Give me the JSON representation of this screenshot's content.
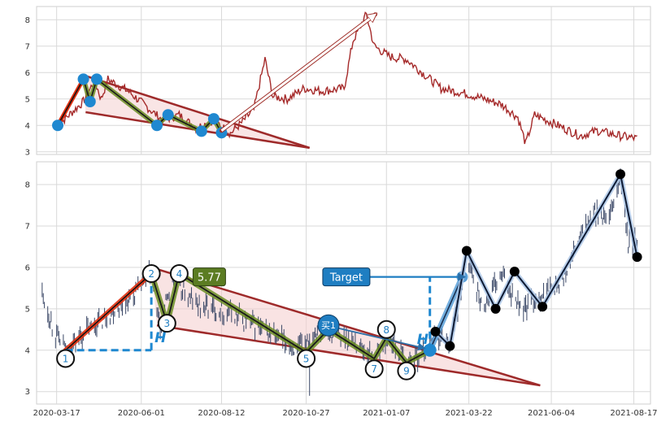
{
  "chart_data": [
    {
      "type": "line",
      "name": "overview-panel",
      "y_ticks": [
        3,
        4,
        5,
        6,
        7,
        8
      ],
      "ylim": [
        2.9,
        8.5
      ],
      "x_range": [
        "2020-02-28",
        "2021-09-01"
      ],
      "grid": true,
      "price_color": "#a52a2a",
      "price_anchors": [
        [
          "2020-03-18",
          4.0
        ],
        [
          "2020-04-10",
          4.9
        ],
        [
          "2020-04-20",
          5.7
        ],
        [
          "2020-04-26",
          5.0
        ],
        [
          "2020-05-02",
          5.75
        ],
        [
          "2020-05-20",
          5.3
        ],
        [
          "2020-06-20",
          4.2
        ],
        [
          "2020-07-05",
          4.4
        ],
        [
          "2020-07-20",
          3.9
        ],
        [
          "2020-08-05",
          4.2
        ],
        [
          "2020-08-20",
          3.7
        ],
        [
          "2020-08-30",
          4.1
        ],
        [
          "2020-09-10",
          4.6
        ],
        [
          "2020-09-20",
          6.5
        ],
        [
          "2020-09-27",
          5.1
        ],
        [
          "2020-10-10",
          5.0
        ],
        [
          "2020-10-25",
          5.4
        ],
        [
          "2020-11-10",
          5.3
        ],
        [
          "2020-11-30",
          5.4
        ],
        [
          "2020-12-08",
          7.2
        ],
        [
          "2020-12-20",
          8.2
        ],
        [
          "2020-12-27",
          7.0
        ],
        [
          "2021-01-10",
          6.6
        ],
        [
          "2021-01-25",
          6.5
        ],
        [
          "2021-02-08",
          6.0
        ],
        [
          "2021-02-25",
          5.4
        ],
        [
          "2021-03-20",
          5.2
        ],
        [
          "2021-04-05",
          5.0
        ],
        [
          "2021-04-20",
          4.8
        ],
        [
          "2021-05-05",
          4.3
        ],
        [
          "2021-05-12",
          3.3
        ],
        [
          "2021-05-20",
          4.4
        ],
        [
          "2021-06-10",
          4.0
        ],
        [
          "2021-06-30",
          3.6
        ],
        [
          "2021-07-15",
          3.8
        ],
        [
          "2021-08-05",
          3.6
        ],
        [
          "2021-08-20",
          3.5
        ]
      ],
      "pivots": [
        [
          "2020-03-18",
          4.0
        ],
        [
          "2020-04-10",
          5.75
        ],
        [
          "2020-04-16",
          4.9
        ],
        [
          "2020-04-22",
          5.75
        ],
        [
          "2020-06-15",
          4.0
        ],
        [
          "2020-06-25",
          4.4
        ],
        [
          "2020-07-25",
          3.78
        ],
        [
          "2020-08-05",
          4.25
        ],
        [
          "2020-08-12",
          3.72
        ]
      ],
      "wedge_upper": [
        [
          "2020-04-10",
          5.9
        ],
        [
          "2020-09-12",
          4.1
        ]
      ],
      "wedge_lower": [
        [
          "2020-04-12",
          4.5
        ],
        [
          "2020-10-30",
          3.15
        ]
      ],
      "arrow_from": [
        "2020-08-12",
        3.8
      ],
      "arrow_to": [
        "2020-12-28",
        8.2
      ]
    },
    {
      "type": "scatter",
      "name": "pattern-panel",
      "y_ticks": [
        3,
        4,
        5,
        6,
        7,
        8
      ],
      "ylim": [
        2.7,
        8.55
      ],
      "x_ticks": [
        "2020-03-17",
        "2020-06-01",
        "2020-08-12",
        "2020-10-27",
        "2021-01-07",
        "2021-03-22",
        "2021-06-04",
        "2021-08-17"
      ],
      "x_range": [
        "2020-02-28",
        "2021-09-01"
      ],
      "grid": true,
      "ohlc_color": "#3a4766",
      "ohlc_anchors": [
        [
          "2020-03-04",
          5.4
        ],
        [
          "2020-03-14",
          4.5
        ],
        [
          "2020-03-25",
          4.0
        ],
        [
          "2020-04-10",
          4.4
        ],
        [
          "2020-05-05",
          4.9
        ],
        [
          "2020-05-25",
          5.3
        ],
        [
          "2020-06-10",
          5.85
        ],
        [
          "2020-06-18",
          4.5
        ],
        [
          "2020-06-28",
          5.7
        ],
        [
          "2020-07-20",
          5.1
        ],
        [
          "2020-08-20",
          4.9
        ],
        [
          "2020-09-10",
          4.6
        ],
        [
          "2020-10-01",
          4.3
        ],
        [
          "2020-10-20",
          4.0
        ],
        [
          "2020-11-05",
          4.5
        ],
        [
          "2020-11-20",
          4.4
        ],
        [
          "2020-12-10",
          4.2
        ],
        [
          "2020-12-27",
          3.8
        ],
        [
          "2021-01-10",
          4.3
        ],
        [
          "2021-01-25",
          3.7
        ],
        [
          "2021-02-10",
          4.0
        ],
        [
          "2021-02-20",
          4.4
        ],
        [
          "2021-03-05",
          4.2
        ],
        [
          "2021-03-15",
          5.4
        ],
        [
          "2021-03-20",
          6.3
        ],
        [
          "2021-04-03",
          5.0
        ],
        [
          "2021-04-20",
          5.8
        ],
        [
          "2021-05-10",
          5.0
        ],
        [
          "2021-05-25",
          5.3
        ],
        [
          "2021-06-15",
          5.7
        ],
        [
          "2021-07-01",
          6.8
        ],
        [
          "2021-07-15",
          7.4
        ],
        [
          "2021-07-25",
          7.0
        ],
        [
          "2021-08-05",
          8.2
        ],
        [
          "2021-08-12",
          6.5
        ],
        [
          "2021-08-20",
          6.7
        ]
      ],
      "wedge_upper": [
        [
          "2020-06-10",
          6.0
        ],
        [
          "2021-02-20",
          4.25
        ]
      ],
      "wedge_lower": [
        [
          "2020-06-15",
          4.6
        ],
        [
          "2021-05-25",
          3.15
        ]
      ],
      "pivot_line_color": "#4a5d1c",
      "impulse_color": "#e03010",
      "labeled_points": [
        {
          "label": "1",
          "date": "2020-03-25",
          "value": 3.8
        },
        {
          "label": "2",
          "date": "2020-06-10",
          "value": 5.85
        },
        {
          "label": "3",
          "date": "2020-06-24",
          "value": 4.65
        },
        {
          "label": "4",
          "date": "2020-07-05",
          "value": 5.85
        },
        {
          "label": "5",
          "date": "2020-10-27",
          "value": 3.8
        },
        {
          "label": "7",
          "date": "2020-12-27",
          "value": 3.55
        },
        {
          "label": "8",
          "date": "2021-01-07",
          "value": 4.5
        },
        {
          "label": "9",
          "date": "2021-01-25",
          "value": 3.5
        }
      ],
      "pivot_path": [
        [
          "2020-06-10",
          5.85
        ],
        [
          "2020-06-24",
          4.65
        ],
        [
          "2020-07-05",
          5.85
        ],
        [
          "2020-10-27",
          3.95
        ],
        [
          "2020-11-16",
          4.5
        ],
        [
          "2020-12-27",
          3.8
        ],
        [
          "2021-01-07",
          4.3
        ],
        [
          "2021-01-25",
          3.7
        ],
        [
          "2021-02-15",
          4.0
        ]
      ],
      "impulse_from": [
        "2020-03-25",
        4.0
      ],
      "impulse_to": [
        "2020-06-10",
        5.85
      ],
      "target_box": {
        "text": "Target",
        "date": "2020-12-02",
        "value": 5.77,
        "color": "#1f7ec2"
      },
      "value_box": {
        "text": "5.77",
        "date": "2020-08-01",
        "value": 5.77,
        "color": "#5b7c22"
      },
      "target_line": [
        [
          "2020-12-20",
          5.77
        ],
        [
          "2021-03-18",
          5.77
        ]
      ],
      "buy_point": {
        "label": "买1",
        "date": "2020-11-16",
        "value": 4.6,
        "color": "#1f7ec2"
      },
      "buy_arrow_to": [
        "2021-02-10",
        4.05
      ],
      "height_marks": [
        {
          "label": "H",
          "date_from": "2020-03-25",
          "date_to": "2020-06-10",
          "base": 4.0,
          "top": 5.85
        },
        {
          "label": "H",
          "date_from": "2021-02-15",
          "date_to": "2021-02-15",
          "base": 4.0,
          "top": 5.77
        }
      ],
      "breakout_path": [
        [
          "2021-02-15",
          4.0
        ],
        [
          "2021-03-16",
          5.77
        ]
      ],
      "post_pivots": [
        [
          "2021-02-20",
          4.45
        ],
        [
          "2021-03-05",
          4.1
        ],
        [
          "2021-03-20",
          6.4
        ],
        [
          "2021-04-15",
          5.0
        ],
        [
          "2021-05-02",
          5.9
        ],
        [
          "2021-05-27",
          5.05
        ],
        [
          "2021-08-05",
          8.25
        ],
        [
          "2021-08-20",
          6.25
        ]
      ]
    }
  ]
}
